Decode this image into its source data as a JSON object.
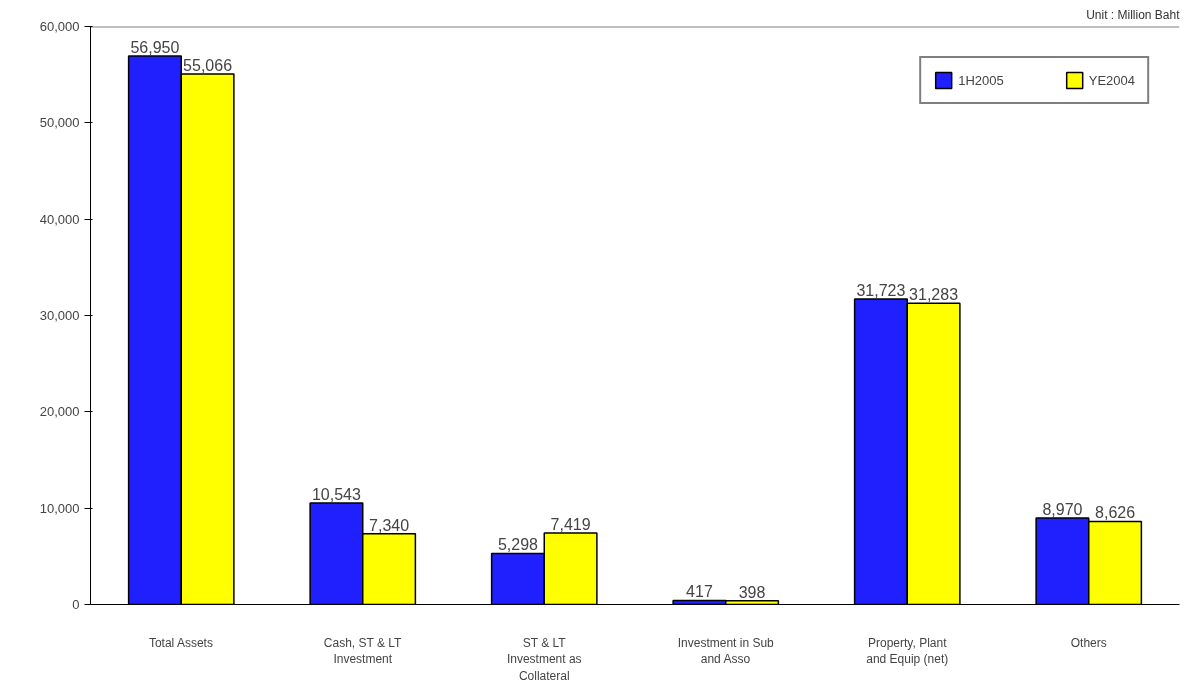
{
  "chart_data": {
    "type": "bar",
    "annotations": [
      "Unit : Million Baht"
    ],
    "categories": [
      "Total Assets",
      "Cash, ST & LT Investment",
      "ST & LT Investment as Collateral",
      "Investment in Sub and Asso",
      "Property, Plant and Equip (net)",
      "Others"
    ],
    "series": [
      {
        "name": "1H2005",
        "color": "#2020ff",
        "values": [
          56950,
          10543,
          5298,
          417,
          31723,
          8970
        ],
        "value_labels": [
          "56,950",
          "10,543",
          "5,298",
          "417",
          "31,723",
          "8,970"
        ]
      },
      {
        "name": "YE2004",
        "color": "#ffff00",
        "values": [
          55066,
          7340,
          7419,
          398,
          31283,
          8626
        ],
        "value_labels": [
          "55,066",
          "7,340",
          "7,419",
          "398",
          "31,283",
          "8,626"
        ]
      }
    ],
    "ylim": [
      0,
      60000
    ],
    "yticks": [
      {
        "value": 0,
        "label": "0"
      },
      {
        "value": 10000,
        "label": "10,000"
      },
      {
        "value": 20000,
        "label": "20,000"
      },
      {
        "value": 30000,
        "label": "30,000"
      },
      {
        "value": 40000,
        "label": "40,000"
      },
      {
        "value": 50000,
        "label": "50,000"
      },
      {
        "value": 60000,
        "label": "60,000"
      }
    ],
    "grid": false,
    "legend": "top right"
  }
}
